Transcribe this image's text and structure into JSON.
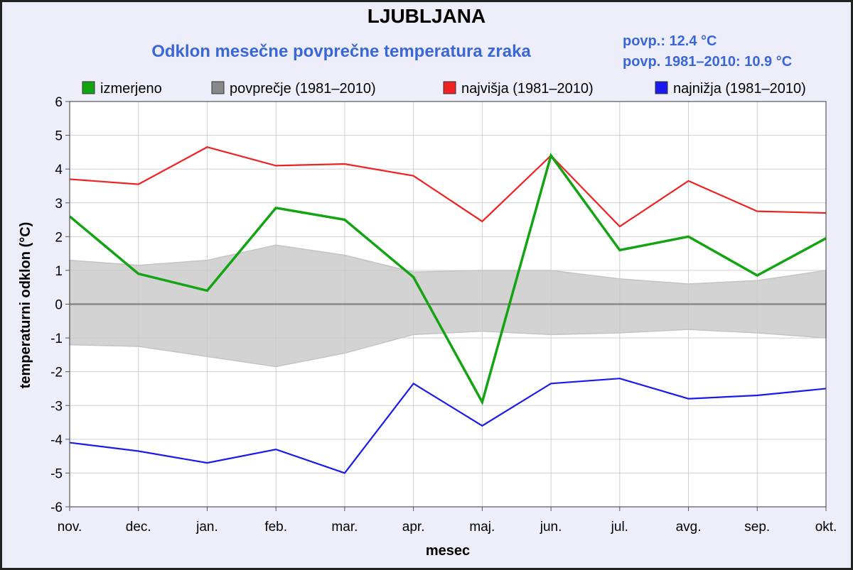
{
  "chart_data": {
    "type": "line",
    "title": "LJUBLJANA",
    "subtitle": "Odklon mesečne povprečne temperatura zraka",
    "info": [
      "povp.: 12.4 °C",
      "povp. 1981–2010: 10.9 °C"
    ],
    "xlabel": "mesec",
    "ylabel": "temperaturni odklon (°C)",
    "ylim": [
      -6,
      6
    ],
    "yticks": [
      6,
      5,
      4,
      3,
      2,
      1,
      0,
      -1,
      -2,
      -3,
      -4,
      -5,
      -6
    ],
    "grid": true,
    "legend_position": "top",
    "categories": [
      "nov.",
      "dec.",
      "jan.",
      "feb.",
      "mar.",
      "apr.",
      "maj.",
      "jun.",
      "jul.",
      "avg.",
      "sep.",
      "okt."
    ],
    "series": [
      {
        "name": "izmerjeno",
        "color": "#13a313",
        "values": [
          2.6,
          0.9,
          0.4,
          2.85,
          2.5,
          0.8,
          -2.9,
          4.4,
          1.6,
          2.0,
          0.85,
          1.95
        ]
      },
      {
        "name": "najvišja (1981–2010)",
        "color": "#ee2222",
        "values": [
          3.7,
          3.55,
          4.65,
          4.1,
          4.15,
          3.8,
          2.45,
          4.4,
          2.3,
          3.65,
          2.75,
          2.7
        ]
      },
      {
        "name": "najnižja (1981–2010)",
        "color": "#1a1aee",
        "values": [
          -4.1,
          -4.35,
          -4.7,
          -4.3,
          -5.0,
          -2.35,
          -3.6,
          -2.35,
          -2.2,
          -2.8,
          -2.7,
          -2.5
        ]
      }
    ],
    "band": {
      "name": "povprečje (1981–2010)",
      "color": "#d3d3d3",
      "upper": [
        1.3,
        1.15,
        1.3,
        1.75,
        1.45,
        0.95,
        1.0,
        1.0,
        0.75,
        0.6,
        0.7,
        1.0
      ],
      "lower": [
        -1.2,
        -1.25,
        -1.55,
        -1.85,
        -1.45,
        -0.9,
        -0.8,
        -0.9,
        -0.85,
        -0.75,
        -0.85,
        -1.0
      ]
    },
    "legend": [
      {
        "label": "izmerjeno",
        "color": "#13a313"
      },
      {
        "label": "povprečje (1981–2010)",
        "color": "#888888"
      },
      {
        "label": "najvišja (1981–2010)",
        "color": "#ee2222"
      },
      {
        "label": "najnižja (1981–2010)",
        "color": "#1a1aee"
      }
    ]
  }
}
